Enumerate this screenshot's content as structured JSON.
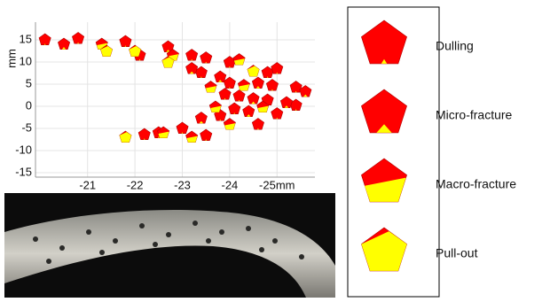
{
  "chart_data": {
    "type": "scatter",
    "y_label": "mm",
    "xlim": [
      -19.9,
      -25.8
    ],
    "ylim": [
      19,
      -16
    ],
    "xticks": [
      -21,
      -22,
      -23,
      -24,
      {
        "value": -25,
        "label": "-25mm"
      }
    ],
    "yticks": [
      15,
      10,
      5,
      0,
      -5,
      -10,
      -15
    ],
    "grid": true,
    "colors": [
      "#ff0000",
      "#ffff00"
    ],
    "series": [
      {
        "name": "Dulling",
        "x": [
          -20.1,
          -20.8,
          -21.8,
          -22.1,
          -23.2,
          -23.5,
          -24.0,
          -24.8,
          -25.0,
          -23.4,
          -24.0,
          -24.9,
          -25.4,
          -23.9,
          -24.2,
          -24.8,
          -25.4,
          -24.1,
          -25.0,
          -23.8,
          -23.0,
          -23.5,
          -22.5,
          -22.2,
          -24.6
        ],
        "y": [
          15.0,
          15.3,
          14.6,
          11.5,
          11.5,
          10.9,
          9.9,
          7.6,
          8.5,
          7.6,
          5.2,
          4.7,
          4.3,
          2.7,
          2.3,
          1.4,
          0.2,
          -0.6,
          -1.7,
          -2.1,
          -5.0,
          -6.6,
          -6.0,
          -6.4,
          -4.1
        ]
      },
      {
        "name": "Micro-fracture",
        "x": [
          -20.5,
          -22.7,
          -23.2,
          -23.8,
          -24.6,
          -25.6,
          -24.5,
          -25.2,
          -24.4,
          -23.4
        ],
        "y": [
          14.0,
          13.4,
          8.5,
          6.6,
          5.2,
          3.3,
          1.7,
          0.8,
          -1.2,
          -2.7
        ]
      },
      {
        "name": "Macro-fracture",
        "x": [
          -21.3,
          -22.8,
          -24.2,
          -23.6,
          -24.3,
          -23.7,
          -24.7,
          -24.0,
          -23.2,
          -22.6
        ],
        "y": [
          14.0,
          11.5,
          10.5,
          4.3,
          4.7,
          -0.2,
          -0.2,
          -4.1,
          -7.0,
          -6.0
        ]
      },
      {
        "name": "Pull-out",
        "x": [
          -21.4,
          -22.0,
          -22.7,
          -24.5,
          -21.8
        ],
        "y": [
          12.4,
          12.4,
          9.9,
          7.9,
          -7.0
        ]
      }
    ]
  }
}
